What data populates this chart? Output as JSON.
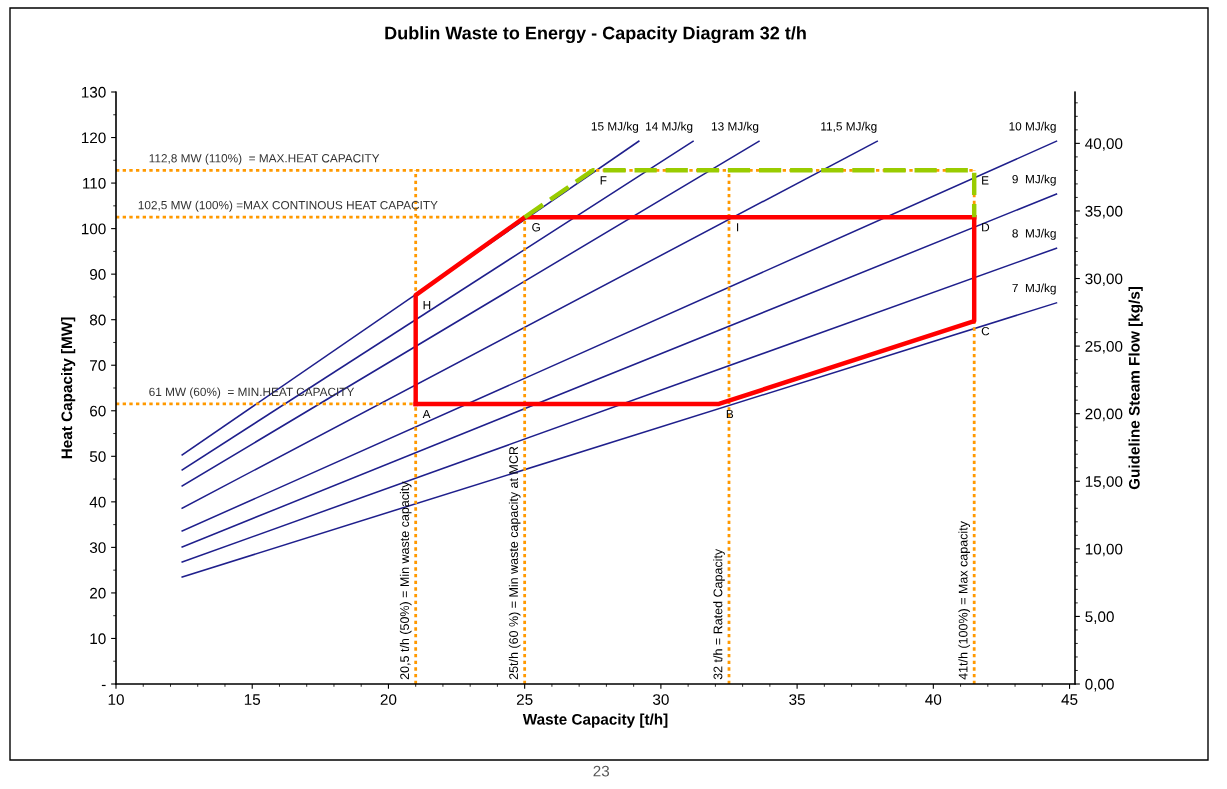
{
  "chart_data": {
    "type": "line",
    "title": "Dublin Waste to Energy - Capacity Diagram 32 t/h",
    "xlabel": "Waste Capacity [t/h]",
    "ylabel": "Heat Capacity [MW]",
    "y2label": "Guideline Steam Flow [kg/s]",
    "xlim": [
      10,
      45.2
    ],
    "xticks": [
      10,
      15,
      20,
      25,
      30,
      35,
      40,
      45
    ],
    "ylim": [
      0,
      130
    ],
    "yticks": [
      {
        "value": 0,
        "label": "-"
      },
      10,
      20,
      30,
      40,
      50,
      60,
      70,
      80,
      90,
      100,
      110,
      120,
      130
    ],
    "y2lim": [
      0,
      43.8
    ],
    "y2ticks": [
      {
        "value": 0,
        "label": "0,00"
      },
      {
        "value": 5,
        "label": "5,00"
      },
      {
        "value": 10,
        "label": "10,00"
      },
      {
        "value": 15,
        "label": "15,00"
      },
      {
        "value": 20,
        "label": "20,00"
      },
      {
        "value": 25,
        "label": "25,00"
      },
      {
        "value": 30,
        "label": "30,00"
      },
      {
        "value": 35,
        "label": "35,00"
      },
      {
        "value": 40,
        "label": "40,00"
      }
    ],
    "grid": false,
    "legend": false,
    "marker": "none",
    "series": [
      {
        "name": "15 MJ/kg",
        "color": "#1f1f8c",
        "line_style": "solid",
        "x": [
          12.43,
          29.19
        ],
        "values": [
          50.3,
          119.2
        ]
      },
      {
        "name": "14 MJ/kg",
        "color": "#1f1f8c",
        "line_style": "solid",
        "x": [
          12.43,
          31.18
        ],
        "values": [
          47,
          119.2
        ]
      },
      {
        "name": "13 MJ/kg",
        "color": "#1f1f8c",
        "line_style": "solid",
        "x": [
          12.43,
          33.6
        ],
        "values": [
          43.5,
          119.2
        ]
      },
      {
        "name": "11,5 MJ/kg",
        "color": "#1f1f8c",
        "line_style": "solid",
        "x": [
          12.43,
          37.94
        ],
        "values": [
          38.6,
          119.2
        ]
      },
      {
        "name": "10 MJ/kg",
        "color": "#1f1f8c",
        "line_style": "solid",
        "x": [
          12.43,
          44.52
        ],
        "values": [
          33.6,
          119.2
        ]
      },
      {
        "name": "9  MJ/kg",
        "color": "#1f1f8c",
        "line_style": "solid",
        "x": [
          12.43,
          44.52
        ],
        "values": [
          30.1,
          107.6
        ]
      },
      {
        "name": "8  MJ/kg",
        "color": "#1f1f8c",
        "line_style": "solid",
        "x": [
          12.43,
          44.52
        ],
        "values": [
          26.8,
          95.7
        ]
      },
      {
        "name": "7  MJ/kg",
        "color": "#1f1f8c",
        "line_style": "solid",
        "x": [
          12.43,
          44.52
        ],
        "values": [
          23.5,
          83.7
        ]
      },
      {
        "color": "#ff9900",
        "line_style": "dotted",
        "x": [
          10,
          41.5
        ],
        "values": [
          112.8,
          112.8
        ]
      },
      {
        "color": "#ff9900",
        "line_style": "dotted",
        "x": [
          10,
          25
        ],
        "values": [
          102.5,
          102.5
        ]
      },
      {
        "color": "#ff9900",
        "line_style": "dotted",
        "x": [
          10,
          21
        ],
        "values": [
          61.5,
          61.5
        ]
      },
      {
        "color": "#ff9900",
        "line_style": "dotted",
        "x": [
          21,
          21
        ],
        "values": [
          0,
          112.8
        ]
      },
      {
        "color": "#ff9900",
        "line_style": "dotted",
        "x": [
          25,
          25
        ],
        "values": [
          0,
          102.5
        ]
      },
      {
        "color": "#ff9900",
        "line_style": "dotted",
        "x": [
          32.5,
          32.5
        ],
        "values": [
          0,
          112.8
        ]
      },
      {
        "color": "#ff9900",
        "line_style": "dotted",
        "x": [
          41.5,
          41.5
        ],
        "values": [
          0,
          112.8
        ]
      },
      {
        "color": "#ff0000",
        "line_style": "solid",
        "x": [
          21,
          32.13,
          41.5,
          41.5
        ],
        "values": [
          61.5,
          61.5,
          79.7,
          102.5
        ]
      },
      {
        "color": "#ff0000",
        "line_style": "solid",
        "x": [
          21,
          21,
          25,
          41.5
        ],
        "values": [
          61.5,
          85.4,
          102.5,
          102.5
        ]
      },
      {
        "color": "#99cc00",
        "line_style": "dashed",
        "x": [
          25,
          27.5,
          41.5,
          41.5
        ],
        "values": [
          102.5,
          112.8,
          112.8,
          102.5
        ]
      }
    ],
    "annotations": [
      {
        "text": "112,8 MW (110%)  = MAX.HEAT CAPACITY",
        "x": 11.2,
        "y": 112.8
      },
      {
        "text": "102,5 MW (100%) =MAX CONTINOUS HEAT CAPACITY",
        "x": 10.8,
        "y": 102.5
      },
      {
        "text": "61 MW (60%)  = MIN.HEAT CAPACITY",
        "x": 11.2,
        "y": 61.5
      },
      {
        "text": "20,5 t/h (50%) = Min waste capacity",
        "x": 21,
        "y": 0
      },
      {
        "text": "25t/h (60 %) = Min waste capacity at MCR",
        "x": 25,
        "y": 0
      },
      {
        "text": "32 t/h = Rated Capacity",
        "x": 32.5,
        "y": 0
      },
      {
        "text": "41t/h (100%) = Max capacity",
        "x": 41.5,
        "y": 0
      },
      {
        "text": "A",
        "x": 21,
        "y": 61.5
      },
      {
        "text": "B",
        "x": 32.13,
        "y": 61.5
      },
      {
        "text": "C",
        "x": 41.5,
        "y": 79.7
      },
      {
        "text": "D",
        "x": 41.5,
        "y": 102.5
      },
      {
        "text": "E",
        "x": 41.5,
        "y": 112.8
      },
      {
        "text": "F",
        "x": 27.5,
        "y": 112.8
      },
      {
        "text": "G",
        "x": 25,
        "y": 102.5
      },
      {
        "text": "H",
        "x": 21,
        "y": 85.4
      },
      {
        "text": "I",
        "x": 32.5,
        "y": 102.5
      },
      "23"
    ]
  }
}
